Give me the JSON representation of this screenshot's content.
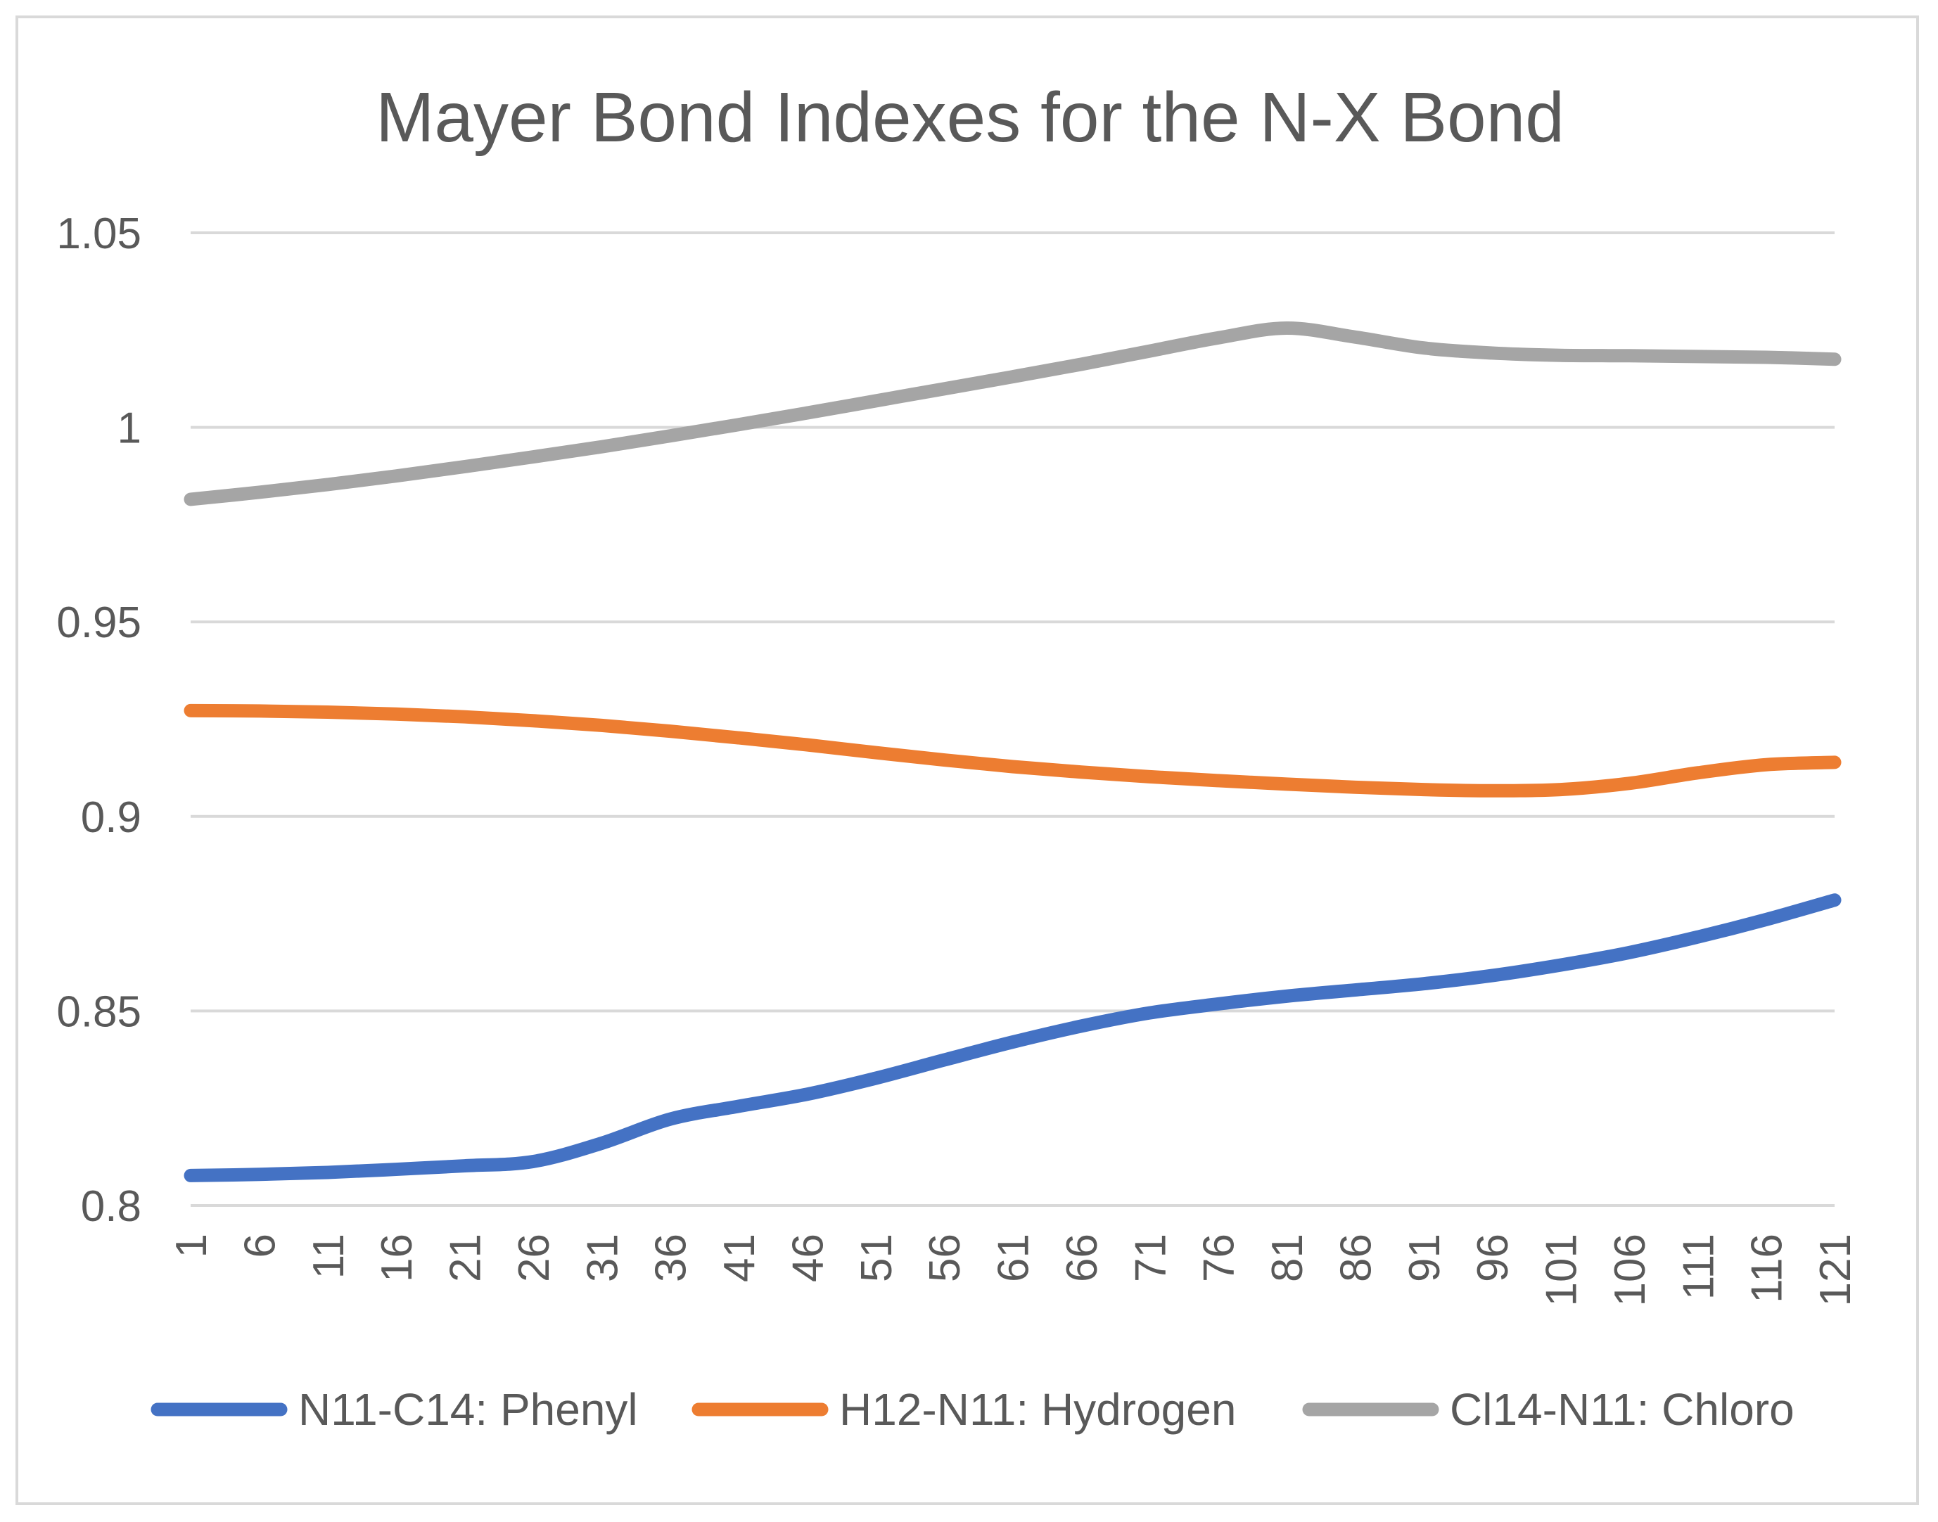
{
  "chart_data": {
    "type": "line",
    "title": "Mayer Bond Indexes for the  N-X Bond",
    "xlabel": "",
    "ylabel": "",
    "x_tick_labels": [
      "1",
      "6",
      "11",
      "16",
      "21",
      "26",
      "31",
      "36",
      "41",
      "46",
      "51",
      "56",
      "61",
      "66",
      "71",
      "76",
      "81",
      "86",
      "91",
      "96",
      "101",
      "106",
      "111",
      "116",
      "121"
    ],
    "ylim": [
      0.8,
      1.05
    ],
    "y_tick_labels": [
      "0.8",
      "0.85",
      "0.9",
      "0.95",
      "1",
      "1.05"
    ],
    "grid": true,
    "legend_position": "bottom",
    "series": [
      {
        "name": "N11-C14: Phenyl",
        "color": "#4472c4",
        "x": [
          1,
          6,
          11,
          16,
          21,
          26,
          31,
          36,
          41,
          46,
          51,
          56,
          61,
          66,
          71,
          76,
          81,
          86,
          91,
          96,
          101,
          106,
          111,
          116,
          121
        ],
        "y": [
          0.8077,
          0.808,
          0.8085,
          0.8093,
          0.8102,
          0.8113,
          0.816,
          0.8222,
          0.8255,
          0.8286,
          0.8327,
          0.8374,
          0.842,
          0.8461,
          0.8495,
          0.8518,
          0.8538,
          0.8554,
          0.857,
          0.8591,
          0.8618,
          0.865,
          0.869,
          0.8735,
          0.8785
        ]
      },
      {
        "name": "H12-N11: Hydrogen",
        "color": "#ed7d31",
        "x": [
          1,
          6,
          11,
          16,
          21,
          26,
          31,
          36,
          41,
          46,
          51,
          56,
          61,
          66,
          71,
          76,
          81,
          86,
          91,
          96,
          101,
          106,
          111,
          116,
          121
        ],
        "y": [
          0.9272,
          0.9271,
          0.9268,
          0.9263,
          0.9256,
          0.9246,
          0.9234,
          0.9219,
          0.9202,
          0.9184,
          0.9164,
          0.9145,
          0.9128,
          0.9114,
          0.9102,
          0.9092,
          0.9083,
          0.9075,
          0.9069,
          0.9066,
          0.9069,
          0.9085,
          0.9112,
          0.9133,
          0.9139
        ]
      },
      {
        "name": "Cl14-N11: Chloro",
        "color": "#a5a5a5",
        "x": [
          1,
          6,
          11,
          16,
          21,
          26,
          31,
          36,
          41,
          46,
          51,
          56,
          61,
          66,
          71,
          76,
          81,
          86,
          91,
          96,
          101,
          106,
          111,
          116,
          121
        ],
        "y": [
          0.9815,
          0.9833,
          0.9853,
          0.9875,
          0.9899,
          0.9924,
          0.995,
          0.9978,
          1.0007,
          1.0037,
          1.0068,
          1.0099,
          1.013,
          1.0162,
          1.0196,
          1.023,
          1.0255,
          1.0232,
          1.0204,
          1.0191,
          1.0185,
          1.0184,
          1.0182,
          1.018,
          1.0175
        ]
      }
    ]
  }
}
